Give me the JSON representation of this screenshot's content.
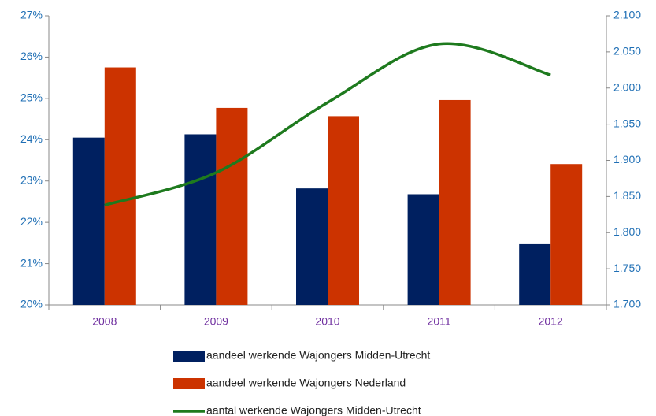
{
  "chart_data": {
    "type": "bar",
    "categories": [
      "2008",
      "2009",
      "2010",
      "2011",
      "2012"
    ],
    "series": [
      {
        "name": "aandeel werkende Wajongers Midden-Utrecht",
        "color": "#002060",
        "values": [
          24.05,
          24.13,
          22.82,
          22.68,
          21.47
        ]
      },
      {
        "name": "aandeel werkende Wajongers Nederland",
        "color": "#cc3300",
        "values": [
          25.75,
          24.77,
          24.57,
          24.96,
          23.41
        ]
      },
      {
        "name": "aantal werkende Wajongers Midden-Utrecht",
        "color": "#1e7a1e",
        "type": "line",
        "axis": "y2",
        "values": [
          1838,
          1883,
          1980,
          2061,
          2018
        ]
      }
    ],
    "ylim": [
      20,
      27
    ],
    "yticks": [
      {
        "value": 20,
        "label": "20%"
      },
      {
        "value": 21,
        "label": "21%"
      },
      {
        "value": 22,
        "label": "22%"
      },
      {
        "value": 23,
        "label": "23%"
      },
      {
        "value": 24,
        "label": "24%"
      },
      {
        "value": 25,
        "label": "25%"
      },
      {
        "value": 26,
        "label": "26%"
      },
      {
        "value": 27,
        "label": "27%"
      }
    ],
    "y2lim": [
      1700,
      2100
    ],
    "y2ticks": [
      {
        "value": 1700,
        "label": "1.700"
      },
      {
        "value": 1750,
        "label": "1.750"
      },
      {
        "value": 1800,
        "label": "1.800"
      },
      {
        "value": 1850,
        "label": "1.850"
      },
      {
        "value": 1900,
        "label": "1.900"
      },
      {
        "value": 1950,
        "label": "1.950"
      },
      {
        "value": 2000,
        "label": "2.000"
      },
      {
        "value": 2050,
        "label": "2.050"
      },
      {
        "value": 2100,
        "label": "2.100"
      }
    ],
    "grid": false
  }
}
